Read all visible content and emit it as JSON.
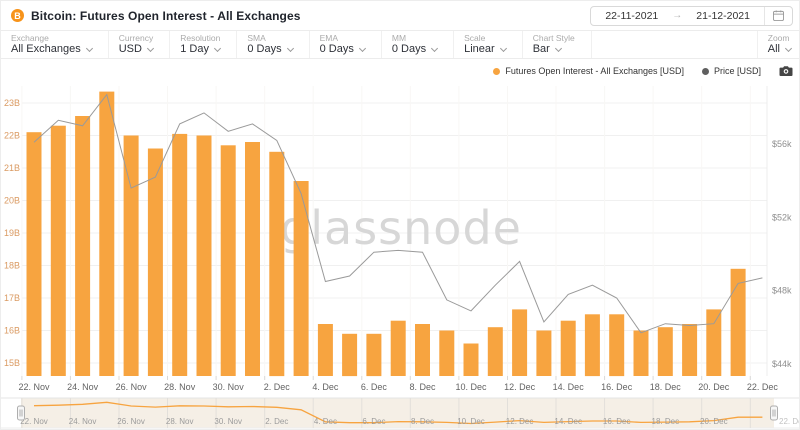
{
  "header": {
    "coin_symbol": "B",
    "title": "Bitcoin: Futures Open Interest - All Exchanges",
    "date_from": "22-11-2021",
    "range_arrow": "→",
    "date_to": "21-12-2021"
  },
  "toolbar": {
    "groups": [
      {
        "label": "Exchange",
        "value": "All Exchanges"
      },
      {
        "label": "Currency",
        "value": "USD"
      },
      {
        "label": "Resolution",
        "value": "1 Day"
      },
      {
        "label": "SMA",
        "value": "0 Days"
      },
      {
        "label": "EMA",
        "value": "0 Days"
      },
      {
        "label": "MM",
        "value": "0 Days"
      },
      {
        "label": "Scale",
        "value": "Linear"
      },
      {
        "label": "Chart Style",
        "value": "Bar"
      }
    ],
    "zoom_group": {
      "label": "Zoom",
      "value": "All"
    }
  },
  "legend": {
    "items": [
      {
        "label": "Futures Open Interest - All Exchanges [USD]",
        "color": "#F7A440"
      },
      {
        "label": "Price [USD]",
        "color": "#5f5f5f"
      }
    ]
  },
  "watermark": "glassnode",
  "chart_data": {
    "type": "bar+line",
    "categories": [
      "22. Nov",
      "23. Nov",
      "24. Nov",
      "25. Nov",
      "26. Nov",
      "27. Nov",
      "28. Nov",
      "29. Nov",
      "30. Nov",
      "1. Dec",
      "2. Dec",
      "3. Dec",
      "4. Dec",
      "5. Dec",
      "6. Dec",
      "7. Dec",
      "8. Dec",
      "9. Dec",
      "10. Dec",
      "11. Dec",
      "12. Dec",
      "13. Dec",
      "14. Dec",
      "15. Dec",
      "16. Dec",
      "17. Dec",
      "18. Dec",
      "19. Dec",
      "20. Dec",
      "21. Dec",
      "22. Dec"
    ],
    "series": [
      {
        "name": "Futures Open Interest - All Exchanges [USD]",
        "type": "bar",
        "axis": "left",
        "unit": "billion USD",
        "color": "#F7A440",
        "values": [
          22.1,
          22.3,
          22.6,
          23.35,
          22.0,
          21.6,
          22.05,
          22.0,
          21.7,
          21.8,
          21.5,
          20.6,
          16.2,
          15.9,
          15.9,
          16.3,
          16.2,
          16.0,
          15.6,
          16.1,
          16.65,
          16.0,
          16.3,
          16.5,
          16.5,
          16.0,
          16.1,
          16.2,
          16.65,
          17.9
        ]
      },
      {
        "name": "Price [USD]",
        "type": "line",
        "axis": "right",
        "unit": "thousand USD",
        "color": "#9a9a9a",
        "values": [
          56.1,
          57.3,
          57.0,
          58.7,
          53.6,
          54.2,
          57.1,
          57.7,
          56.7,
          57.1,
          56.2,
          53.3,
          48.5,
          48.8,
          50.1,
          50.2,
          50.1,
          47.5,
          46.9,
          48.3,
          49.6,
          46.3,
          47.8,
          48.3,
          47.6,
          45.7,
          46.2,
          46.1,
          46.2,
          48.4,
          48.7
        ]
      }
    ],
    "left_axis": {
      "ticks": [
        "15B",
        "16B",
        "17B",
        "18B",
        "19B",
        "20B",
        "21B",
        "22B",
        "23B"
      ],
      "tick_values": [
        15,
        16,
        17,
        18,
        19,
        20,
        21,
        22,
        23
      ],
      "min": 14.6,
      "max": 23.6,
      "label_color": "#DA9A62"
    },
    "right_axis": {
      "ticks": [
        "$44k",
        "$48k",
        "$52k",
        "$56k"
      ],
      "tick_values": [
        44,
        48,
        52,
        56
      ],
      "min": 43.4,
      "max": 58.4,
      "label_color": "#8f8f8f"
    },
    "x_tick_labels": [
      "22. Nov",
      "24. Nov",
      "26. Nov",
      "28. Nov",
      "30. Nov",
      "2. Dec",
      "4. Dec",
      "6. Dec",
      "8. Dec",
      "10. Dec",
      "12. Dec",
      "14. Dec",
      "16. Dec",
      "18. Dec",
      "20. Dec",
      "22. Dec"
    ],
    "grid": true,
    "legend_position": "top-right"
  },
  "navigator": {
    "inside_labels": [
      "22. Nov",
      "24. Nov",
      "26. Nov",
      "28. Nov",
      "30. Nov",
      "2. Dec",
      "4. Dec",
      "6. Dec",
      "8. Dec",
      "10. Dec",
      "12. Dec",
      "14. Dec",
      "16. Dec",
      "18. Dec",
      "20. Dec"
    ],
    "outside_label": "22. Dec"
  }
}
